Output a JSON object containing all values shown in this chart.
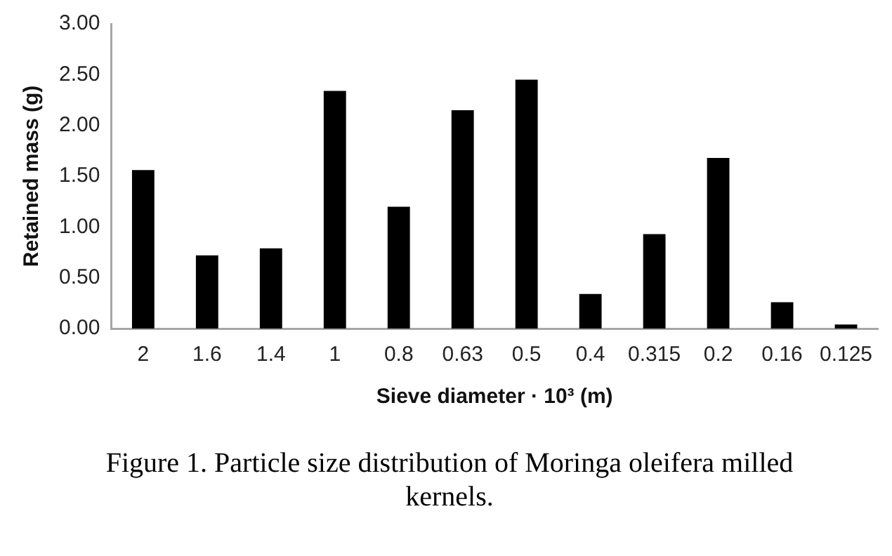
{
  "chart_data": {
    "type": "bar",
    "xlabel": "Sieve diameter · 10³ (m)",
    "ylabel": "Retained mass (g)",
    "categories": [
      "2",
      "1.6",
      "1.4",
      "1",
      "0.8",
      "0.63",
      "0.5",
      "0.4",
      "0.315",
      "0.2",
      "0.16",
      "0.125"
    ],
    "values": [
      1.56,
      0.72,
      0.79,
      2.34,
      1.2,
      2.15,
      2.45,
      0.34,
      0.93,
      1.68,
      0.26,
      0.04
    ],
    "color": "#000000",
    "ylim": [
      0,
      3
    ],
    "yticks": [
      {
        "value": 0,
        "label": "0.00"
      },
      {
        "value": 0.5,
        "label": "0.50"
      },
      {
        "value": 1,
        "label": "1.00"
      },
      {
        "value": 1.5,
        "label": "1.50"
      },
      {
        "value": 2,
        "label": "2.00"
      },
      {
        "value": 2.5,
        "label": "2.50"
      },
      {
        "value": 3,
        "label": "3.00"
      }
    ],
    "grid": false,
    "legend": false,
    "annotations": [
      "Figure 1. Particle size distribution of Moringa oleifera milled kernels."
    ]
  }
}
